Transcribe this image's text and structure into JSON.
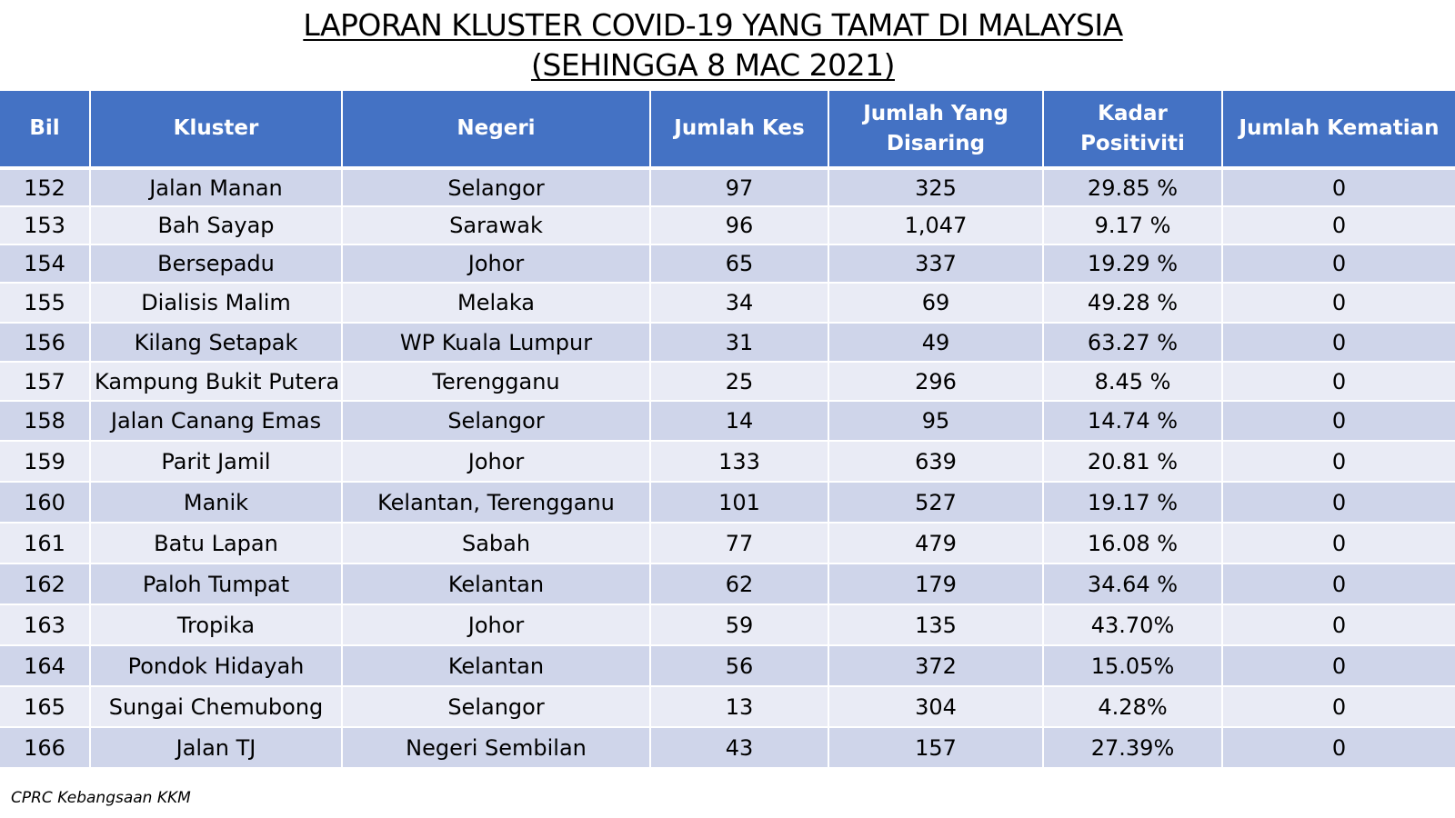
{
  "title": {
    "line1": "LAPORAN KLUSTER COVID-19 YANG TAMAT DI MALAYSIA",
    "line2": "(SEHINGGA  8 MAC 2021)"
  },
  "table": {
    "headers": [
      "Bil",
      "Kluster",
      "Negeri",
      "Jumlah Kes",
      "Jumlah Yang Disaring",
      "Kadar Positiviti",
      "Jumlah Kematian"
    ],
    "rows": [
      [
        "152",
        "Jalan Manan",
        "Selangor",
        "97",
        "325",
        "29.85 %",
        "0"
      ],
      [
        "153",
        "Bah Sayap",
        "Sarawak",
        "96",
        "1,047",
        "9.17 %",
        "0"
      ],
      [
        "154",
        "Bersepadu",
        "Johor",
        "65",
        "337",
        "19.29 %",
        "0"
      ],
      [
        "155",
        "Dialisis Malim",
        "Melaka",
        "34",
        "69",
        "49.28 %",
        "0"
      ],
      [
        "156",
        "Kilang Setapak",
        "WP Kuala Lumpur",
        "31",
        "49",
        "63.27 %",
        "0"
      ],
      [
        "157",
        "Kampung Bukit Putera",
        "Terengganu",
        "25",
        "296",
        "8.45 %",
        "0"
      ],
      [
        "158",
        "Jalan Canang Emas",
        "Selangor",
        "14",
        "95",
        "14.74 %",
        "0"
      ],
      [
        "159",
        "Parit Jamil",
        "Johor",
        "133",
        "639",
        "20.81 %",
        "0"
      ],
      [
        "160",
        "Manik",
        "Kelantan, Terengganu",
        "101",
        "527",
        "19.17 %",
        "0"
      ],
      [
        "161",
        "Batu Lapan",
        "Sabah",
        "77",
        "479",
        "16.08 %",
        "0"
      ],
      [
        "162",
        "Paloh Tumpat",
        "Kelantan",
        "62",
        "179",
        "34.64 %",
        "0"
      ],
      [
        "163",
        "Tropika",
        "Johor",
        "59",
        "135",
        "43.70%",
        "0"
      ],
      [
        "164",
        "Pondok Hidayah",
        "Kelantan",
        "56",
        "372",
        "15.05%",
        "0"
      ],
      [
        "165",
        "Sungai Chemubong",
        "Selangor",
        "13",
        "304",
        "4.28%",
        "0"
      ],
      [
        "166",
        "Jalan TJ",
        "Negeri Sembilan",
        "43",
        "157",
        "27.39%",
        "0"
      ]
    ]
  },
  "footer": {
    "source": "CPRC Kebangsaan KKM"
  },
  "colors": {
    "header_bg": "#4472c4",
    "row_dark": "#cfd5ea",
    "row_light": "#e9ebf5"
  }
}
